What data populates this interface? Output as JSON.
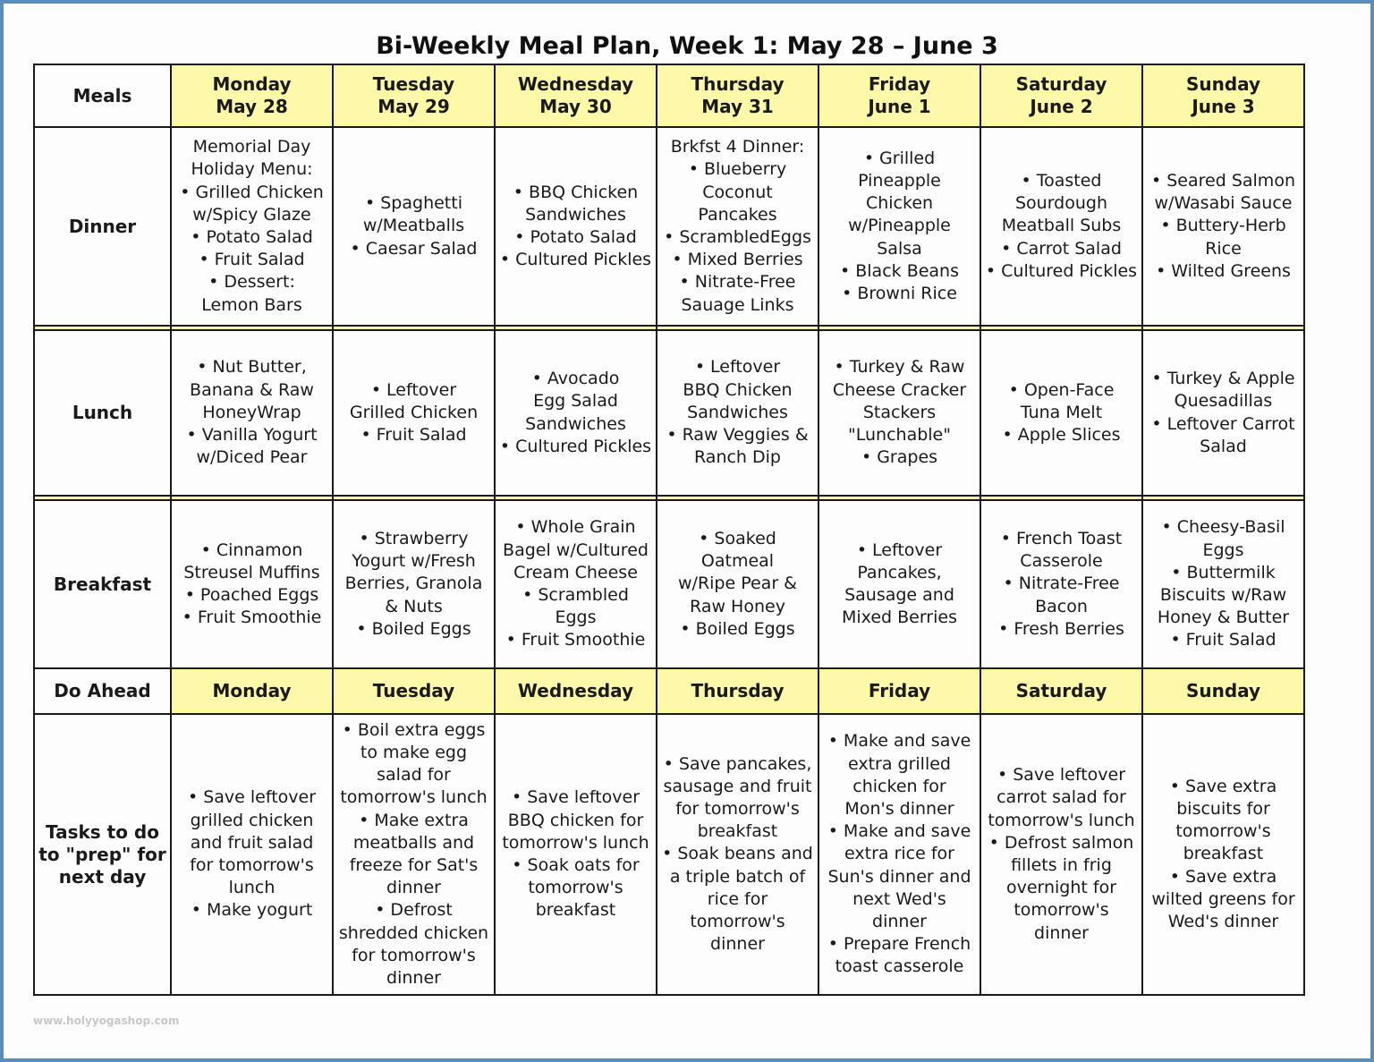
{
  "title": "Bi-Weekly Meal Plan, Week 1: May 28 – June 3",
  "watermark": "www.holyyogashop.com",
  "colors": {
    "frame": "#5b8dbb",
    "header_fill": "#fdf9a9"
  },
  "header": {
    "corner": "Meals",
    "days": [
      [
        "Monday",
        "May 28"
      ],
      [
        "Tuesday",
        "May 29"
      ],
      [
        "Wednesday",
        "May 30"
      ],
      [
        "Thursday",
        "May 31"
      ],
      [
        "Friday",
        "June 1"
      ],
      [
        "Saturday",
        "June 2"
      ],
      [
        "Sunday",
        "June 3"
      ]
    ]
  },
  "rows": [
    {
      "label": [
        "Dinner"
      ],
      "cells": [
        [
          "Memorial Day",
          "Holiday Menu:",
          "• Grilled Chicken",
          "w/Spicy Glaze",
          "• Potato Salad",
          "• Fruit Salad",
          "• Dessert:",
          "Lemon Bars"
        ],
        [
          "• Spaghetti",
          "w/Meatballs",
          "• Caesar Salad"
        ],
        [
          "• BBQ Chicken",
          "Sandwiches",
          "• Potato Salad",
          "• Cultured Pickles"
        ],
        [
          "Brkfst 4 Dinner:",
          "• Blueberry",
          "Coconut",
          "Pancakes",
          "• ScrambledEggs",
          "• Mixed Berries",
          "• Nitrate-Free",
          "Sauage Links"
        ],
        [
          "• Grilled",
          "Pineapple",
          "Chicken",
          "w/Pineapple",
          "Salsa",
          "• Black Beans",
          "• Browni Rice"
        ],
        [
          "• Toasted",
          "Sourdough",
          "Meatball Subs",
          "• Carrot Salad",
          "• Cultured Pickles"
        ],
        [
          "• Seared Salmon",
          "w/Wasabi Sauce",
          "• Buttery-Herb",
          "Rice",
          "• Wilted Greens"
        ]
      ]
    },
    {
      "label": [
        "Lunch"
      ],
      "cells": [
        [
          "• Nut Butter,",
          "Banana & Raw",
          "HoneyWrap",
          "• Vanilla Yogurt",
          "w/Diced Pear"
        ],
        [
          "• Leftover",
          "Grilled Chicken",
          "• Fruit Salad"
        ],
        [
          "• Avocado",
          "Egg Salad",
          "Sandwiches",
          "• Cultured Pickles"
        ],
        [
          "• Leftover",
          "BBQ Chicken",
          "Sandwiches",
          "• Raw Veggies &",
          "Ranch Dip"
        ],
        [
          "• Turkey & Raw",
          "Cheese Cracker",
          "Stackers",
          "\"Lunchable\"",
          "• Grapes"
        ],
        [
          "• Open-Face",
          "Tuna Melt",
          "• Apple Slices"
        ],
        [
          "• Turkey & Apple",
          "Quesadillas",
          "• Leftover Carrot",
          "Salad"
        ]
      ]
    },
    {
      "label": [
        "Breakfast"
      ],
      "cells": [
        [
          "• Cinnamon",
          "Streusel Muffins",
          "• Poached Eggs",
          "• Fruit Smoothie"
        ],
        [
          "• Strawberry",
          "Yogurt w/Fresh",
          "Berries, Granola",
          "& Nuts",
          "• Boiled Eggs"
        ],
        [
          "• Whole Grain",
          "Bagel w/Cultured",
          "Cream Cheese",
          "• Scrambled",
          "Eggs",
          "• Fruit Smoothie"
        ],
        [
          "• Soaked",
          "Oatmeal",
          "w/Ripe Pear &",
          "Raw Honey",
          "• Boiled Eggs"
        ],
        [
          "• Leftover",
          "Pancakes,",
          "Sausage and",
          "Mixed Berries"
        ],
        [
          "• French Toast",
          "Casserole",
          "• Nitrate-Free",
          "Bacon",
          "• Fresh Berries"
        ],
        [
          "• Cheesy-Basil",
          "Eggs",
          "• Buttermilk",
          "Biscuits w/Raw",
          "Honey & Butter",
          "• Fruit Salad"
        ]
      ]
    }
  ],
  "do_ahead": {
    "label": "Do Ahead",
    "days": [
      "Monday",
      "Tuesday",
      "Wednesday",
      "Thursday",
      "Friday",
      "Saturday",
      "Sunday"
    ]
  },
  "tasks": {
    "label": [
      "Tasks to do",
      "to \"prep\" for",
      "next day"
    ],
    "cells": [
      [
        "• Save leftover",
        "grilled chicken",
        "and fruit salad",
        "for tomorrow's",
        "lunch",
        "• Make yogurt"
      ],
      [
        "• Boil extra eggs",
        "to make egg",
        "salad for",
        "tomorrow's lunch",
        "• Make extra",
        "meatballs and",
        "freeze for Sat's",
        "dinner",
        "• Defrost",
        "shredded chicken",
        "for tomorrow's",
        "dinner"
      ],
      [
        "• Save leftover",
        "BBQ chicken for",
        "tomorrow's lunch",
        "• Soak oats for",
        "tomorrow's",
        "breakfast"
      ],
      [
        "• Save pancakes,",
        "sausage and fruit",
        "for tomorrow's",
        "breakfast",
        "• Soak beans and",
        "a triple batch of",
        "rice for",
        "tomorrow's",
        "dinner"
      ],
      [
        "• Make and save",
        "extra grilled",
        "chicken for",
        "Mon's dinner",
        "• Make and save",
        "extra rice for",
        "Sun's dinner and",
        "next Wed's",
        "dinner",
        "• Prepare French",
        "toast casserole"
      ],
      [
        "• Save leftover",
        "carrot salad for",
        "tomorrow's lunch",
        "• Defrost salmon",
        "fillets in frig",
        "overnight for",
        "tomorrow's",
        "dinner"
      ],
      [
        "• Save extra",
        "biscuits for",
        "tomorrow's",
        "breakfast",
        "• Save extra",
        "wilted greens for",
        "Wed's dinner"
      ]
    ]
  }
}
